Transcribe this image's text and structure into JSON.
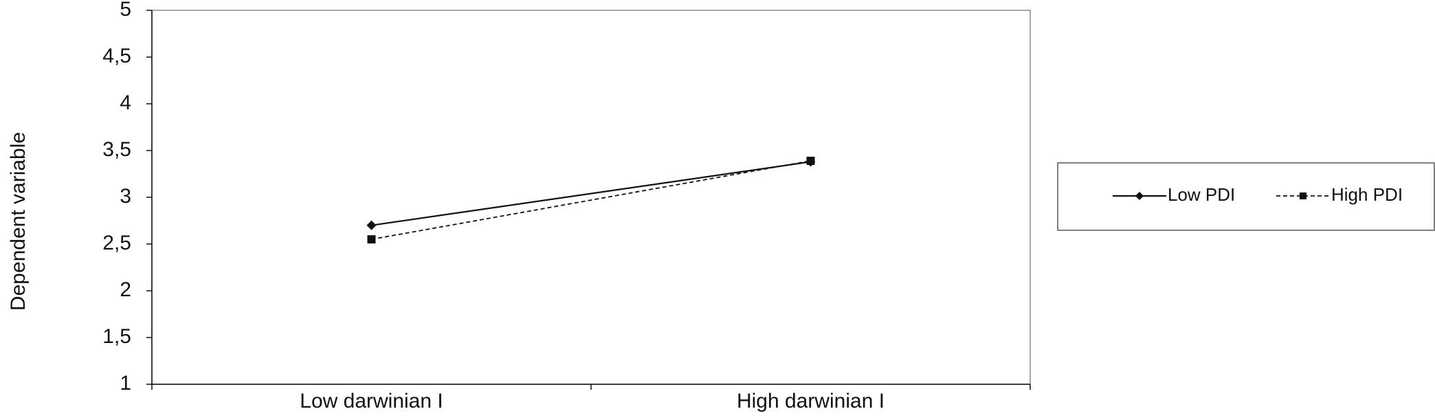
{
  "chart_data": {
    "type": "line",
    "title": "",
    "xlabel": "",
    "ylabel": "Dependent variable",
    "categories": [
      "Low darwinian I",
      "High darwinian I"
    ],
    "ylim": [
      1,
      5
    ],
    "yticks": [
      "1",
      "1,5",
      "2",
      "2,5",
      "3",
      "3,5",
      "4",
      "4,5",
      "5"
    ],
    "ytick_values": [
      1,
      1.5,
      2,
      2.5,
      3,
      3.5,
      4,
      4.5,
      5
    ],
    "grid": false,
    "legend_position": "right",
    "series": [
      {
        "name": "Low PDI",
        "values": [
          2.7,
          3.38
        ],
        "marker": "diamond",
        "line_style": "solid",
        "color": "#111111"
      },
      {
        "name": "High PDI",
        "values": [
          2.55,
          3.39
        ],
        "marker": "square",
        "line_style": "dashed",
        "color": "#111111"
      }
    ]
  }
}
